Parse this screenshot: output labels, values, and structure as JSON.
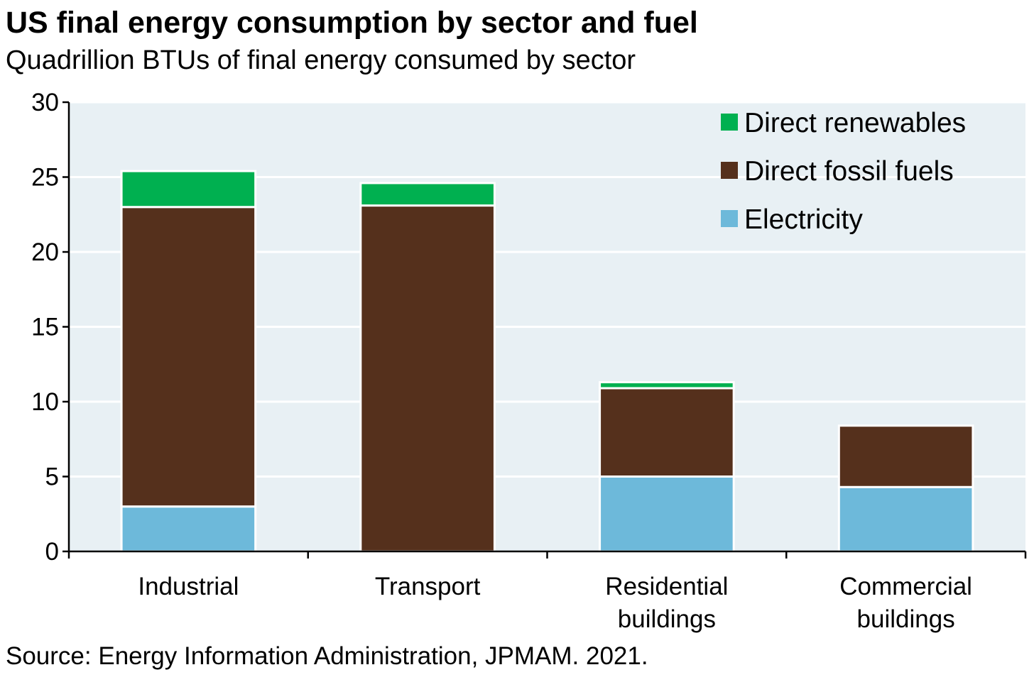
{
  "title": "US final energy consumption by sector and fuel",
  "subtitle": "Quadrillion BTUs of final energy consumed by sector",
  "source": "Source: Energy Information Administration, JPMAM. 2021.",
  "colors": {
    "plot_background": "#e8f0f4",
    "gridline": "#ffffff",
    "axis": "#000000"
  },
  "chart_data": {
    "type": "bar",
    "stacked": true,
    "categories": [
      [
        "Industrial"
      ],
      [
        "Transport"
      ],
      [
        "Residential",
        "buildings"
      ],
      [
        "Commercial",
        "buildings"
      ]
    ],
    "series": [
      {
        "name": "Electricity",
        "color": "#6db9da",
        "values": [
          3.0,
          0.0,
          5.0,
          4.3
        ]
      },
      {
        "name": "Direct fossil fuels",
        "color": "#55301c",
        "values": [
          20.0,
          23.1,
          5.9,
          4.1
        ]
      },
      {
        "name": "Direct renewables",
        "color": "#00b050",
        "values": [
          2.4,
          1.5,
          0.4,
          0.0
        ]
      }
    ],
    "legend_order": [
      "Direct renewables",
      "Direct fossil fuels",
      "Electricity"
    ],
    "legend_position": "top-right",
    "ylim": [
      0,
      30
    ],
    "yticks": [
      0,
      5,
      10,
      15,
      20,
      25,
      30
    ],
    "grid": true,
    "xlabel": "",
    "ylabel": ""
  }
}
